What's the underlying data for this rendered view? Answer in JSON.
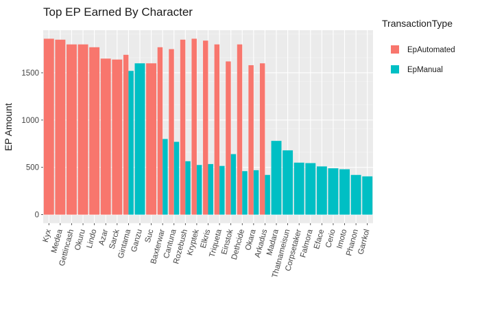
{
  "chart_data": {
    "type": "bar",
    "title": "Top EP Earned By Character",
    "xlabel": "",
    "ylabel": "EP Amount",
    "ylim": [
      -90,
      1950
    ],
    "yticks": [
      0,
      500,
      1000,
      1500
    ],
    "grid": true,
    "legend": {
      "title": "TransactionType",
      "position": "right"
    },
    "colors": {
      "EpAutomated": "#F8766D",
      "EpManual": "#00BFC4"
    },
    "categories": [
      "Kyx",
      "Medea",
      "Gettincash",
      "Okuru",
      "Lindo",
      "Azar",
      "Sarck",
      "Gintama",
      "Ganzu",
      "Suc",
      "Baxterwar",
      "Cantuna",
      "Rozebush",
      "Kryptek",
      "Elkris",
      "Triqueta",
      "Einstok",
      "Dethcide",
      "Okara",
      "Arkadus",
      "Madara",
      "Thatnameisun",
      "Corpsetaker",
      "Falmora",
      "Eface",
      "Cerio",
      "Imoto",
      "Phanon",
      "Garrkol"
    ],
    "series": [
      {
        "name": "EpAutomated",
        "values": [
          1860,
          1850,
          1800,
          1800,
          1770,
          1650,
          1640,
          1690,
          null,
          1600,
          1770,
          1750,
          1850,
          1860,
          1840,
          1800,
          1620,
          1800,
          1580,
          1600,
          null,
          null,
          null,
          null,
          null,
          null,
          null,
          null,
          null
        ]
      },
      {
        "name": "EpManual",
        "values": [
          null,
          null,
          null,
          null,
          null,
          null,
          null,
          1520,
          1600,
          null,
          800,
          770,
          565,
          525,
          535,
          515,
          640,
          460,
          470,
          420,
          780,
          680,
          550,
          545,
          510,
          490,
          480,
          420,
          405
        ]
      }
    ]
  }
}
